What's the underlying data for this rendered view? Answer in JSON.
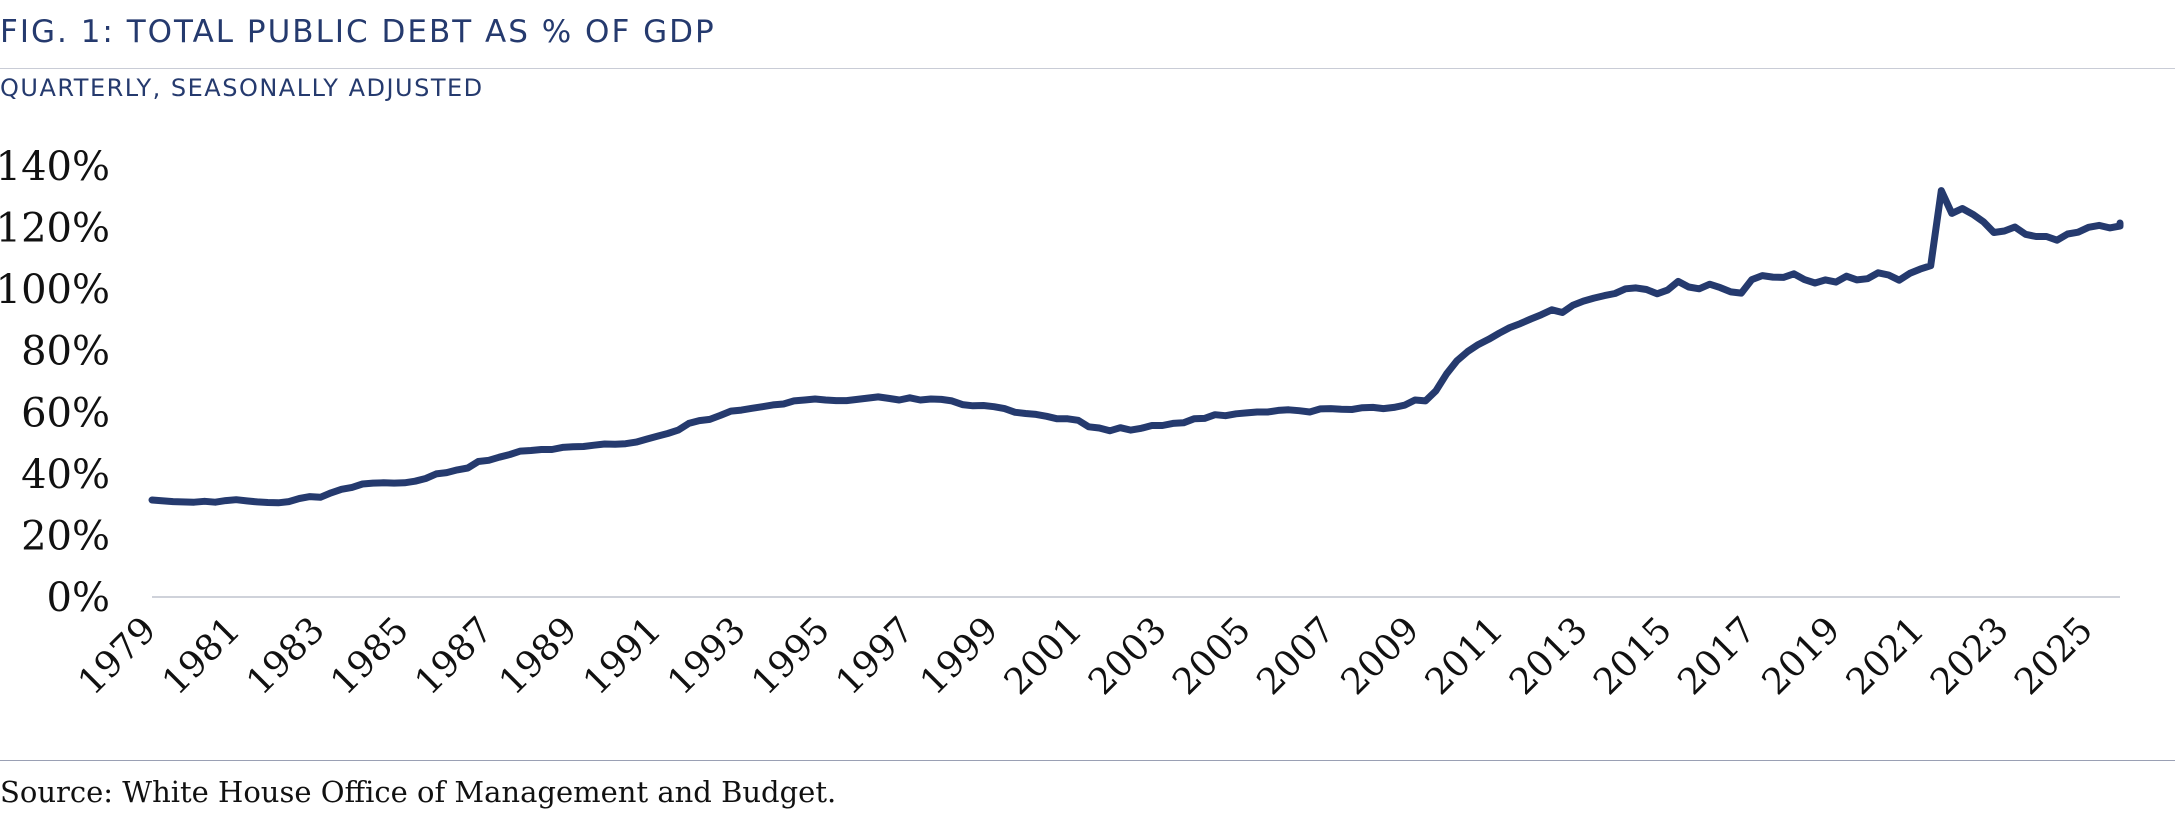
{
  "chart_data": {
    "type": "line",
    "title": "FIG. 1: TOTAL PUBLIC DEBT AS % OF GDP",
    "subtitle": "QUARTERLY, SEASONALLY ADJUSTED",
    "source": "Source: White House Office of Management and Budget.",
    "xlabel": "",
    "ylabel": "",
    "ylim": [
      0,
      140
    ],
    "yticks": [
      0,
      20,
      40,
      60,
      80,
      100,
      120,
      140
    ],
    "ytick_labels": [
      "0%",
      "20%",
      "40%",
      "60%",
      "80%",
      "100%",
      "120%",
      "140%"
    ],
    "xlim": [
      1979,
      2025
    ],
    "xticks": [
      1979,
      1981,
      1983,
      1985,
      1987,
      1989,
      1991,
      1993,
      1995,
      1997,
      1999,
      2001,
      2003,
      2005,
      2007,
      2009,
      2011,
      2013,
      2015,
      2017,
      2019,
      2021,
      2023,
      2025
    ],
    "xtick_labels": [
      "1979",
      "1981",
      "1983",
      "1985",
      "1987",
      "1989",
      "1991",
      "1993",
      "1995",
      "1997",
      "1999",
      "2001",
      "2003",
      "2005",
      "2007",
      "2009",
      "2011",
      "2013",
      "2015",
      "2017",
      "2019",
      "2021",
      "2023",
      "2025"
    ],
    "line_color": "#253a6e",
    "grid": false,
    "series": [
      {
        "name": "Total Public Debt as % of GDP",
        "points": [
          [
            1979.0,
            31.5
          ],
          [
            1979.5,
            31.0
          ],
          [
            1980.0,
            30.8
          ],
          [
            1980.25,
            31.1
          ],
          [
            1980.5,
            30.8
          ],
          [
            1980.75,
            31.3
          ],
          [
            1981.0,
            31.6
          ],
          [
            1981.25,
            31.2
          ],
          [
            1981.5,
            30.9
          ],
          [
            1981.75,
            30.7
          ],
          [
            1982.0,
            30.6
          ],
          [
            1982.25,
            31.0
          ],
          [
            1982.5,
            32.0
          ],
          [
            1982.75,
            32.6
          ],
          [
            1983.0,
            32.4
          ],
          [
            1983.25,
            33.8
          ],
          [
            1983.5,
            35.0
          ],
          [
            1983.75,
            35.6
          ],
          [
            1984.0,
            36.7
          ],
          [
            1984.25,
            37.0
          ],
          [
            1984.5,
            37.1
          ],
          [
            1984.75,
            37.0
          ],
          [
            1985.0,
            37.1
          ],
          [
            1985.25,
            37.6
          ],
          [
            1985.5,
            38.5
          ],
          [
            1985.75,
            40.0
          ],
          [
            1986.0,
            40.4
          ],
          [
            1986.25,
            41.3
          ],
          [
            1986.5,
            41.9
          ],
          [
            1986.75,
            44.0
          ],
          [
            1987.0,
            44.4
          ],
          [
            1987.25,
            45.4
          ],
          [
            1987.5,
            46.3
          ],
          [
            1987.75,
            47.4
          ],
          [
            1988.0,
            47.6
          ],
          [
            1988.25,
            47.9
          ],
          [
            1988.5,
            47.9
          ],
          [
            1988.75,
            48.6
          ],
          [
            1989.0,
            48.8
          ],
          [
            1989.25,
            48.9
          ],
          [
            1989.5,
            49.3
          ],
          [
            1989.75,
            49.7
          ],
          [
            1990.0,
            49.6
          ],
          [
            1990.25,
            49.8
          ],
          [
            1990.5,
            50.3
          ],
          [
            1990.75,
            51.3
          ],
          [
            1991.0,
            52.2
          ],
          [
            1991.25,
            53.1
          ],
          [
            1991.5,
            54.2
          ],
          [
            1991.75,
            56.4
          ],
          [
            1992.0,
            57.3
          ],
          [
            1992.25,
            57.7
          ],
          [
            1992.5,
            59.0
          ],
          [
            1992.75,
            60.4
          ],
          [
            1993.0,
            60.7
          ],
          [
            1993.25,
            61.3
          ],
          [
            1993.5,
            61.8
          ],
          [
            1993.75,
            62.4
          ],
          [
            1994.0,
            62.7
          ],
          [
            1994.25,
            63.7
          ],
          [
            1994.5,
            64.0
          ],
          [
            1994.75,
            64.3
          ],
          [
            1995.0,
            64.0
          ],
          [
            1995.25,
            63.8
          ],
          [
            1995.5,
            63.8
          ],
          [
            1995.75,
            64.2
          ],
          [
            1996.0,
            64.6
          ],
          [
            1996.25,
            65.0
          ],
          [
            1996.5,
            64.5
          ],
          [
            1996.75,
            64.0
          ],
          [
            1997.0,
            64.7
          ],
          [
            1997.25,
            64.0
          ],
          [
            1997.5,
            64.3
          ],
          [
            1997.75,
            64.2
          ],
          [
            1998.0,
            63.7
          ],
          [
            1998.25,
            62.5
          ],
          [
            1998.5,
            62.1
          ],
          [
            1998.75,
            62.2
          ],
          [
            1999.0,
            61.8
          ],
          [
            1999.25,
            61.2
          ],
          [
            1999.5,
            60.0
          ],
          [
            1999.75,
            59.6
          ],
          [
            2000.0,
            59.3
          ],
          [
            2000.25,
            58.7
          ],
          [
            2000.5,
            57.9
          ],
          [
            2000.75,
            57.9
          ],
          [
            2001.0,
            57.4
          ],
          [
            2001.25,
            55.3
          ],
          [
            2001.5,
            54.9
          ],
          [
            2001.75,
            54.0
          ],
          [
            2002.0,
            55.0
          ],
          [
            2002.25,
            54.2
          ],
          [
            2002.5,
            54.8
          ],
          [
            2002.75,
            55.7
          ],
          [
            2003.0,
            55.7
          ],
          [
            2003.25,
            56.4
          ],
          [
            2003.5,
            56.6
          ],
          [
            2003.75,
            57.9
          ],
          [
            2004.0,
            58.0
          ],
          [
            2004.25,
            59.2
          ],
          [
            2004.5,
            58.9
          ],
          [
            2004.75,
            59.5
          ],
          [
            2005.0,
            59.8
          ],
          [
            2005.25,
            60.1
          ],
          [
            2005.5,
            60.1
          ],
          [
            2005.75,
            60.6
          ],
          [
            2006.0,
            60.8
          ],
          [
            2006.25,
            60.5
          ],
          [
            2006.5,
            60.1
          ],
          [
            2006.75,
            61.1
          ],
          [
            2007.0,
            61.2
          ],
          [
            2007.25,
            61.0
          ],
          [
            2007.5,
            60.9
          ],
          [
            2007.75,
            61.5
          ],
          [
            2008.0,
            61.6
          ],
          [
            2008.25,
            61.2
          ],
          [
            2008.5,
            61.6
          ],
          [
            2008.75,
            62.3
          ],
          [
            2009.0,
            64.0
          ],
          [
            2009.25,
            63.7
          ],
          [
            2009.5,
            67.0
          ],
          [
            2009.75,
            72.5
          ],
          [
            2010.0,
            76.8
          ],
          [
            2010.25,
            79.7
          ],
          [
            2010.5,
            82.0
          ],
          [
            2010.75,
            83.7
          ],
          [
            2011.0,
            85.7
          ],
          [
            2011.25,
            87.5
          ],
          [
            2011.5,
            88.8
          ],
          [
            2011.75,
            90.3
          ],
          [
            2012.0,
            91.7
          ],
          [
            2012.25,
            93.3
          ],
          [
            2012.5,
            92.4
          ],
          [
            2012.75,
            94.8
          ],
          [
            2013.0,
            96.1
          ],
          [
            2013.25,
            97.1
          ],
          [
            2013.5,
            97.9
          ],
          [
            2013.75,
            98.6
          ],
          [
            2014.0,
            100.1
          ],
          [
            2014.25,
            100.4
          ],
          [
            2014.5,
            99.9
          ],
          [
            2014.75,
            98.5
          ],
          [
            2015.0,
            99.7
          ],
          [
            2015.25,
            102.5
          ],
          [
            2015.5,
            100.7
          ],
          [
            2015.75,
            100.1
          ],
          [
            2016.0,
            101.6
          ],
          [
            2016.25,
            100.5
          ],
          [
            2016.5,
            99.1
          ],
          [
            2016.75,
            98.7
          ],
          [
            2017.0,
            103.1
          ],
          [
            2017.25,
            104.4
          ],
          [
            2017.5,
            103.9
          ],
          [
            2017.75,
            103.8
          ],
          [
            2018.0,
            105.0
          ],
          [
            2018.25,
            103.1
          ],
          [
            2018.5,
            102.0
          ],
          [
            2018.75,
            103.0
          ],
          [
            2019.0,
            102.3
          ],
          [
            2019.25,
            104.2
          ],
          [
            2019.5,
            103.0
          ],
          [
            2019.75,
            103.4
          ],
          [
            2020.0,
            105.3
          ],
          [
            2020.25,
            104.6
          ],
          [
            2020.5,
            102.9
          ],
          [
            2020.75,
            105.1
          ],
          [
            2021.0,
            106.5
          ],
          [
            2021.25,
            107.6
          ],
          [
            2021.5,
            132.0
          ],
          [
            2021.75,
            124.6
          ],
          [
            2022.0,
            126.2
          ],
          [
            2022.25,
            124.3
          ],
          [
            2022.5,
            121.9
          ],
          [
            2022.75,
            118.4
          ],
          [
            2023.0,
            118.9
          ],
          [
            2023.25,
            120.2
          ],
          [
            2023.5,
            117.8
          ],
          [
            2023.75,
            117.1
          ],
          [
            2024.0,
            117.1
          ],
          [
            2024.25,
            115.9
          ],
          [
            2024.5,
            117.9
          ],
          [
            2024.75,
            118.5
          ],
          [
            2025.0,
            120.1
          ],
          [
            2025.25,
            120.7
          ],
          [
            2025.5,
            119.9
          ],
          [
            2025.75,
            120.5
          ],
          [
            2026.0,
            121.5
          ],
          [
            2026.25,
            120.8
          ]
        ]
      }
    ]
  }
}
